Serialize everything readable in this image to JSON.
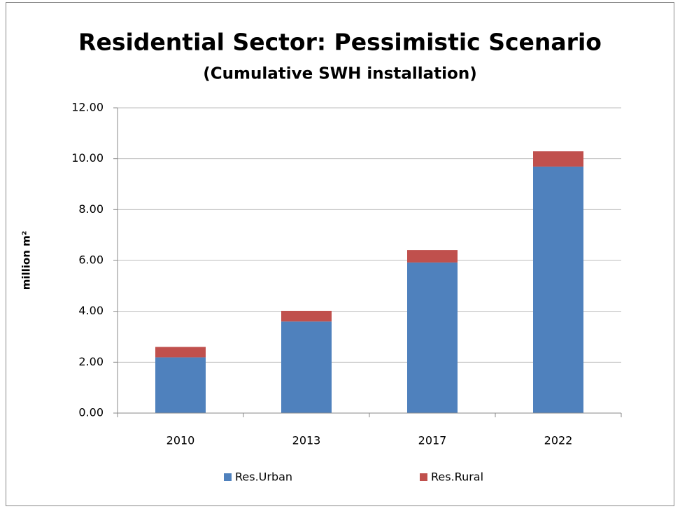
{
  "chart_data": {
    "type": "stacked_bar",
    "title": "Residential Sector: Pessimistic Scenario",
    "subtitle": "(Cumulative SWH installation)",
    "y_label": "million m²",
    "categories": [
      "2010",
      "2013",
      "2017",
      "2022"
    ],
    "series": [
      {
        "name": "Res.Urban",
        "color": "#4f81bd",
        "values": [
          2.19,
          3.6,
          5.92,
          9.69
        ]
      },
      {
        "name": "Res.Rural",
        "color": "#c0504d",
        "values": [
          0.41,
          0.42,
          0.49,
          0.6
        ]
      }
    ],
    "ylim": [
      0,
      12
    ],
    "yticks": [
      {
        "value": 0,
        "label": "0.00"
      },
      {
        "value": 2,
        "label": "2.00"
      },
      {
        "value": 4,
        "label": "4.00"
      },
      {
        "value": 6,
        "label": "6.00"
      },
      {
        "value": 8,
        "label": "8.00"
      },
      {
        "value": 10,
        "label": "10.00"
      },
      {
        "value": 12,
        "label": "12.00"
      }
    ],
    "grid": true,
    "legend": "bottom"
  }
}
